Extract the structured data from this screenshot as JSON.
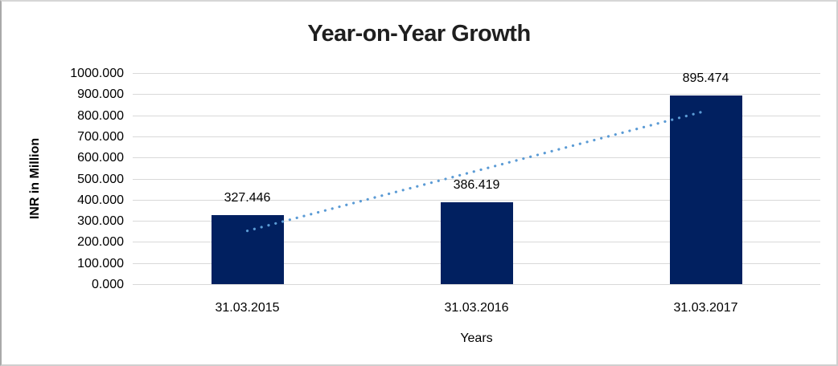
{
  "chart_data": {
    "type": "bar",
    "title": "Year-on-Year Growth",
    "categories": [
      "31.03.2015",
      "31.03.2016",
      "31.03.2017"
    ],
    "values": [
      327.446,
      386.419,
      895.474
    ],
    "data_labels": [
      "327.446",
      "386.419",
      "895.474"
    ],
    "xlabel": "Years",
    "ylabel": "INR in Million",
    "ylim": [
      0,
      1000
    ],
    "ytick_step": 100,
    "ytick_labels": [
      "0.000",
      "100.000",
      "200.000",
      "300.000",
      "400.000",
      "500.000",
      "600.000",
      "700.000",
      "800.000",
      "900.000",
      "1000.000"
    ],
    "grid": true,
    "legend": "none",
    "colors": {
      "bar": "#012060",
      "trendline": "#5b9bd5",
      "gridline": "#d9d9d9",
      "text": "#000000",
      "title": "#1f1f1f"
    },
    "trendline": {
      "style": "dotted",
      "start_category_index": 0,
      "end_category_index": 2,
      "start_value": 252.4,
      "end_value": 820.5
    }
  }
}
